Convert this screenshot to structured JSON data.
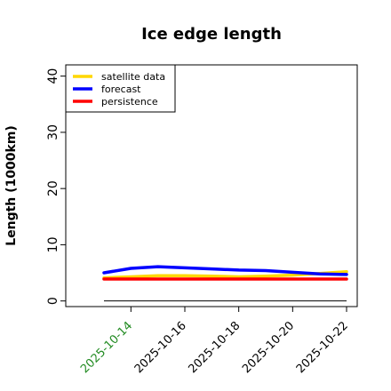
{
  "chart_data": {
    "type": "line",
    "title": "Ice edge length",
    "ylabel": "Length (1000km)",
    "xlabel": "",
    "x": [
      "2025-10-13",
      "2025-10-14",
      "2025-10-15",
      "2025-10-16",
      "2025-10-17",
      "2025-10-18",
      "2025-10-19",
      "2025-10-20",
      "2025-10-21",
      "2025-10-22"
    ],
    "x_ticks": [
      "2025-10-14",
      "2025-10-16",
      "2025-10-18",
      "2025-10-20",
      "2025-10-22"
    ],
    "highlight_tick": "2025-10-14",
    "highlight_color": "#228B22",
    "y_ticks": [
      "0",
      "10",
      "20",
      "30",
      "40"
    ],
    "ylim": [
      -1,
      42
    ],
    "grid": false,
    "legend_position": "top-left",
    "reference_line": {
      "value": 0,
      "color": "#000000"
    },
    "series": [
      {
        "name": "satellite data",
        "color": "#FFD700",
        "values": [
          4.1,
          4.3,
          4.5,
          4.5,
          4.4,
          4.3,
          4.4,
          4.6,
          4.9,
          5.2
        ]
      },
      {
        "name": "forecast",
        "color": "#0000FF",
        "values": [
          5.0,
          5.8,
          6.1,
          5.9,
          5.7,
          5.5,
          5.4,
          5.1,
          4.8,
          4.7
        ]
      },
      {
        "name": "persistence",
        "color": "#FF0000",
        "values": [
          3.9,
          3.9,
          3.9,
          3.9,
          3.9,
          3.9,
          3.9,
          3.9,
          3.9,
          3.9
        ]
      }
    ]
  }
}
